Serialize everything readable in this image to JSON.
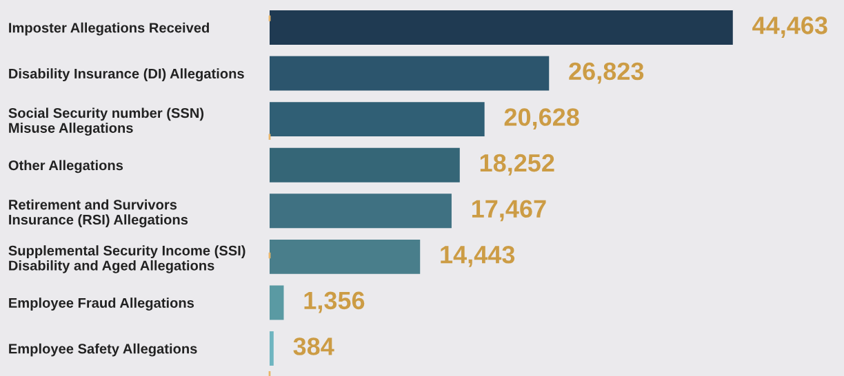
{
  "chart_data": {
    "type": "bar",
    "orientation": "horizontal",
    "categories": [
      "Imposter Allegations Received",
      "Disability Insurance (DI) Allegations",
      "Social Security number (SSN)\nMisuse Allegations",
      "Other Allegations",
      "Retirement and Survivors\nInsurance (RSI) Allegations",
      "Supplemental Security Income (SSI)\nDisability and Aged Allegations",
      "Employee Fraud Allegations",
      "Employee Safety Allegations"
    ],
    "values": [
      44463,
      26823,
      20628,
      18252,
      17467,
      14443,
      1356,
      384
    ],
    "colors": [
      "#1f3a52",
      "#2c556d",
      "#305f75",
      "#356677",
      "#3f7182",
      "#497e8b",
      "#5a9aa3",
      "#6fb5c0"
    ],
    "value_labels": [
      "44,463",
      "26,823",
      "20,628",
      "18,252",
      "17,467",
      "14,443",
      "1,356",
      "384"
    ],
    "tick_labels": "y",
    "grid": false,
    "legend": false
  }
}
